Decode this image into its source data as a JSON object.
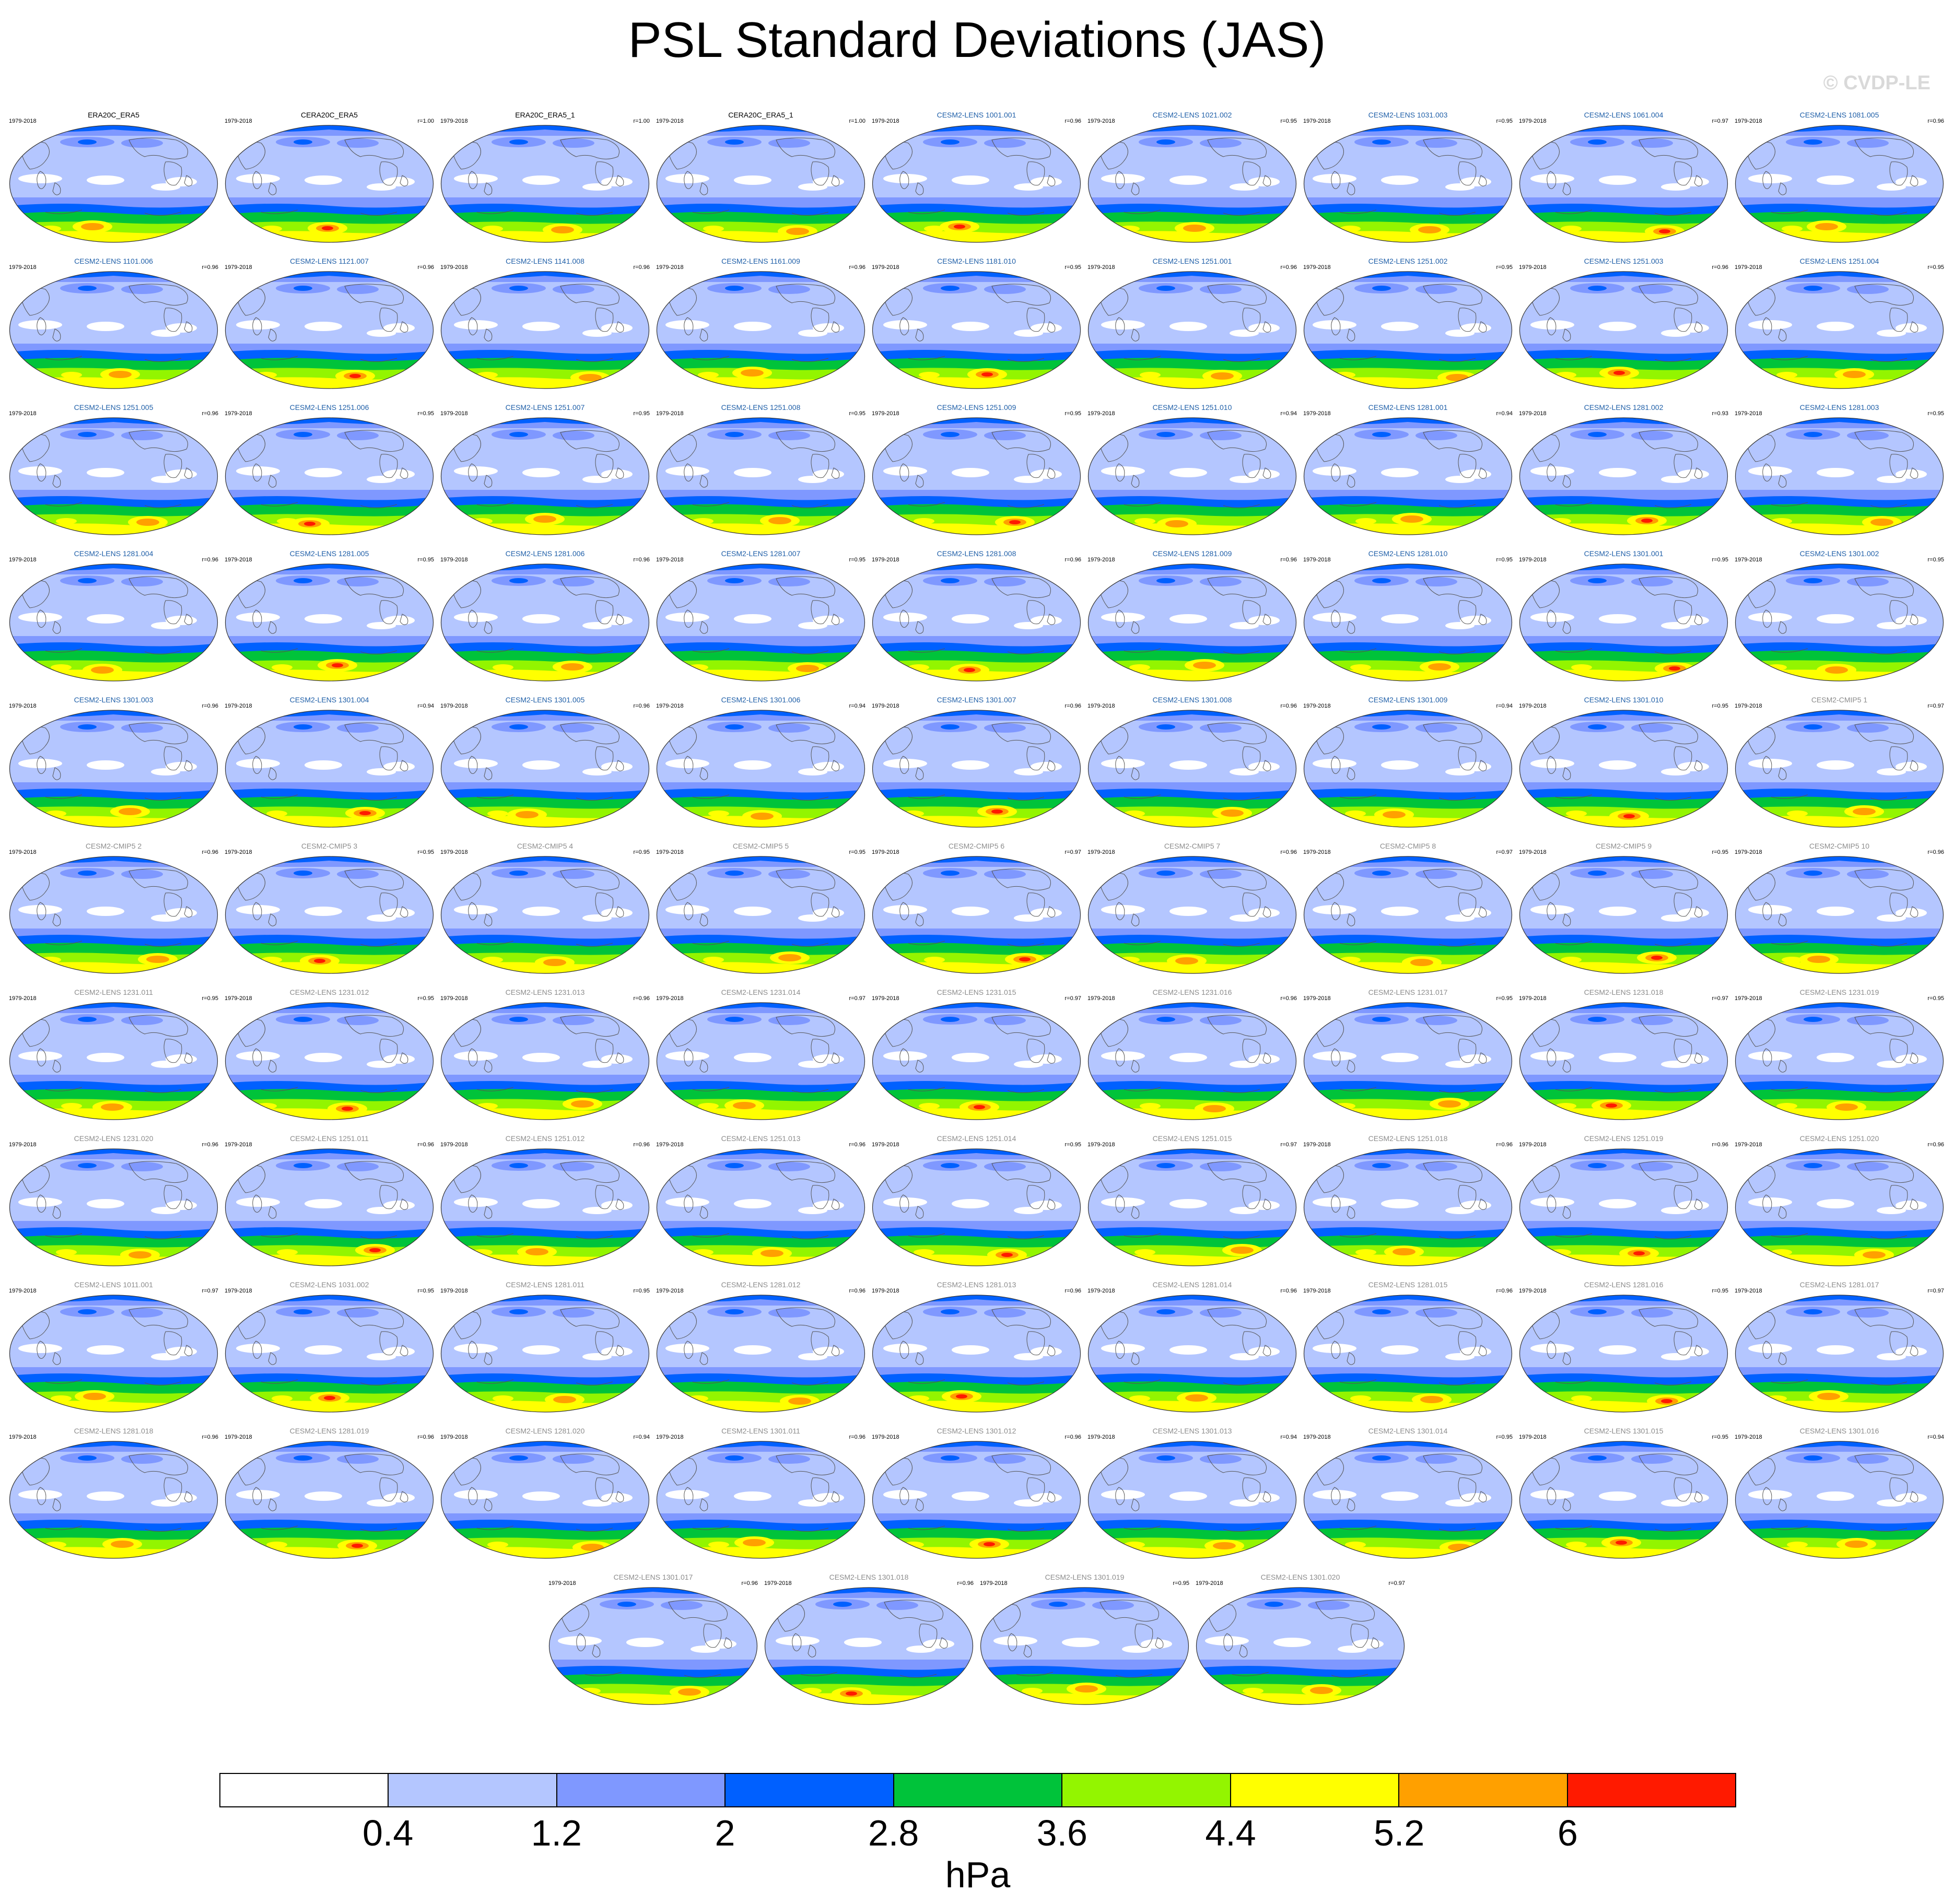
{
  "title": "PSL Standard Deviations (JAS)",
  "watermark": "© CVDP-LE",
  "period": "1979-2018",
  "panels": [
    {
      "title": "ERA20C_ERA5",
      "r": "",
      "cat": "obs"
    },
    {
      "title": "CERA20C_ERA5",
      "r": "r=1.00",
      "cat": "obs"
    },
    {
      "title": "ERA20C_ERA5_1",
      "r": "r=1.00",
      "cat": "obs"
    },
    {
      "title": "CERA20C_ERA5_1",
      "r": "r=1.00",
      "cat": "obs"
    },
    {
      "title": "CESM2-LENS 1001.001",
      "r": "r=0.96",
      "cat": "lens"
    },
    {
      "title": "CESM2-LENS 1021.002",
      "r": "r=0.95",
      "cat": "lens"
    },
    {
      "title": "CESM2-LENS 1031.003",
      "r": "r=0.95",
      "cat": "lens"
    },
    {
      "title": "CESM2-LENS 1061.004",
      "r": "r=0.97",
      "cat": "lens"
    },
    {
      "title": "CESM2-LENS 1081.005",
      "r": "r=0.96",
      "cat": "lens"
    },
    {
      "title": "CESM2-LENS 1101.006",
      "r": "r=0.96",
      "cat": "lens"
    },
    {
      "title": "CESM2-LENS 1121.007",
      "r": "r=0.96",
      "cat": "lens"
    },
    {
      "title": "CESM2-LENS 1141.008",
      "r": "r=0.96",
      "cat": "lens"
    },
    {
      "title": "CESM2-LENS 1161.009",
      "r": "r=0.96",
      "cat": "lens"
    },
    {
      "title": "CESM2-LENS 1181.010",
      "r": "r=0.95",
      "cat": "lens"
    },
    {
      "title": "CESM2-LENS 1251.001",
      "r": "r=0.96",
      "cat": "lens"
    },
    {
      "title": "CESM2-LENS 1251.002",
      "r": "r=0.95",
      "cat": "lens"
    },
    {
      "title": "CESM2-LENS 1251.003",
      "r": "r=0.96",
      "cat": "lens"
    },
    {
      "title": "CESM2-LENS 1251.004",
      "r": "r=0.95",
      "cat": "lens"
    },
    {
      "title": "CESM2-LENS 1251.005",
      "r": "r=0.96",
      "cat": "lens"
    },
    {
      "title": "CESM2-LENS 1251.006",
      "r": "r=0.95",
      "cat": "lens"
    },
    {
      "title": "CESM2-LENS 1251.007",
      "r": "r=0.95",
      "cat": "lens"
    },
    {
      "title": "CESM2-LENS 1251.008",
      "r": "r=0.95",
      "cat": "lens"
    },
    {
      "title": "CESM2-LENS 1251.009",
      "r": "r=0.95",
      "cat": "lens"
    },
    {
      "title": "CESM2-LENS 1251.010",
      "r": "r=0.94",
      "cat": "lens"
    },
    {
      "title": "CESM2-LENS 1281.001",
      "r": "r=0.94",
      "cat": "lens"
    },
    {
      "title": "CESM2-LENS 1281.002",
      "r": "r=0.93",
      "cat": "lens"
    },
    {
      "title": "CESM2-LENS 1281.003",
      "r": "r=0.95",
      "cat": "lens"
    },
    {
      "title": "CESM2-LENS 1281.004",
      "r": "r=0.96",
      "cat": "lens"
    },
    {
      "title": "CESM2-LENS 1281.005",
      "r": "r=0.95",
      "cat": "lens"
    },
    {
      "title": "CESM2-LENS 1281.006",
      "r": "r=0.96",
      "cat": "lens"
    },
    {
      "title": "CESM2-LENS 1281.007",
      "r": "r=0.95",
      "cat": "lens"
    },
    {
      "title": "CESM2-LENS 1281.008",
      "r": "r=0.96",
      "cat": "lens"
    },
    {
      "title": "CESM2-LENS 1281.009",
      "r": "r=0.96",
      "cat": "lens"
    },
    {
      "title": "CESM2-LENS 1281.010",
      "r": "r=0.95",
      "cat": "lens"
    },
    {
      "title": "CESM2-LENS 1301.001",
      "r": "r=0.95",
      "cat": "lens"
    },
    {
      "title": "CESM2-LENS 1301.002",
      "r": "r=0.95",
      "cat": "lens"
    },
    {
      "title": "CESM2-LENS 1301.003",
      "r": "r=0.96",
      "cat": "lens"
    },
    {
      "title": "CESM2-LENS 1301.004",
      "r": "r=0.94",
      "cat": "lens"
    },
    {
      "title": "CESM2-LENS 1301.005",
      "r": "r=0.96",
      "cat": "lens"
    },
    {
      "title": "CESM2-LENS 1301.006",
      "r": "r=0.94",
      "cat": "lens"
    },
    {
      "title": "CESM2-LENS 1301.007",
      "r": "r=0.96",
      "cat": "lens"
    },
    {
      "title": "CESM2-LENS 1301.008",
      "r": "r=0.96",
      "cat": "lens"
    },
    {
      "title": "CESM2-LENS 1301.009",
      "r": "r=0.94",
      "cat": "lens"
    },
    {
      "title": "CESM2-LENS 1301.010",
      "r": "r=0.95",
      "cat": "lens"
    },
    {
      "title": "CESM2-CMIP5 1",
      "r": "r=0.97",
      "cat": "cmip"
    },
    {
      "title": "CESM2-CMIP5 2",
      "r": "r=0.96",
      "cat": "cmip"
    },
    {
      "title": "CESM2-CMIP5 3",
      "r": "r=0.95",
      "cat": "cmip"
    },
    {
      "title": "CESM2-CMIP5 4",
      "r": "r=0.95",
      "cat": "cmip"
    },
    {
      "title": "CESM2-CMIP5 5",
      "r": "r=0.95",
      "cat": "cmip"
    },
    {
      "title": "CESM2-CMIP5 6",
      "r": "r=0.97",
      "cat": "cmip"
    },
    {
      "title": "CESM2-CMIP5 7",
      "r": "r=0.96",
      "cat": "cmip"
    },
    {
      "title": "CESM2-CMIP5 8",
      "r": "r=0.97",
      "cat": "cmip"
    },
    {
      "title": "CESM2-CMIP5 9",
      "r": "r=0.95",
      "cat": "cmip"
    },
    {
      "title": "CESM2-CMIP5 10",
      "r": "r=0.96",
      "cat": "cmip"
    },
    {
      "title": "CESM2-LENS 1231.011",
      "r": "r=0.95",
      "cat": "cmip"
    },
    {
      "title": "CESM2-LENS 1231.012",
      "r": "r=0.95",
      "cat": "cmip"
    },
    {
      "title": "CESM2-LENS 1231.013",
      "r": "r=0.96",
      "cat": "cmip"
    },
    {
      "title": "CESM2-LENS 1231.014",
      "r": "r=0.97",
      "cat": "cmip"
    },
    {
      "title": "CESM2-LENS 1231.015",
      "r": "r=0.97",
      "cat": "cmip"
    },
    {
      "title": "CESM2-LENS 1231.016",
      "r": "r=0.96",
      "cat": "cmip"
    },
    {
      "title": "CESM2-LENS 1231.017",
      "r": "r=0.95",
      "cat": "cmip"
    },
    {
      "title": "CESM2-LENS 1231.018",
      "r": "r=0.97",
      "cat": "cmip"
    },
    {
      "title": "CESM2-LENS 1231.019",
      "r": "r=0.95",
      "cat": "cmip"
    },
    {
      "title": "CESM2-LENS 1231.020",
      "r": "r=0.96",
      "cat": "cmip"
    },
    {
      "title": "CESM2-LENS 1251.011",
      "r": "r=0.96",
      "cat": "cmip"
    },
    {
      "title": "CESM2-LENS 1251.012",
      "r": "r=0.96",
      "cat": "cmip"
    },
    {
      "title": "CESM2-LENS 1251.013",
      "r": "r=0.96",
      "cat": "cmip"
    },
    {
      "title": "CESM2-LENS 1251.014",
      "r": "r=0.95",
      "cat": "cmip"
    },
    {
      "title": "CESM2-LENS 1251.015",
      "r": "r=0.97",
      "cat": "cmip"
    },
    {
      "title": "CESM2-LENS 1251.018",
      "r": "r=0.96",
      "cat": "cmip"
    },
    {
      "title": "CESM2-LENS 1251.019",
      "r": "r=0.96",
      "cat": "cmip"
    },
    {
      "title": "CESM2-LENS 1251.020",
      "r": "r=0.96",
      "cat": "cmip"
    },
    {
      "title": "CESM2-LENS 1011.001",
      "r": "r=0.97",
      "cat": "cmip"
    },
    {
      "title": "CESM2-LENS 1031.002",
      "r": "r=0.95",
      "cat": "cmip"
    },
    {
      "title": "CESM2-LENS 1281.011",
      "r": "r=0.95",
      "cat": "cmip"
    },
    {
      "title": "CESM2-LENS 1281.012",
      "r": "r=0.96",
      "cat": "cmip"
    },
    {
      "title": "CESM2-LENS 1281.013",
      "r": "r=0.96",
      "cat": "cmip"
    },
    {
      "title": "CESM2-LENS 1281.014",
      "r": "r=0.96",
      "cat": "cmip"
    },
    {
      "title": "CESM2-LENS 1281.015",
      "r": "r=0.96",
      "cat": "cmip"
    },
    {
      "title": "CESM2-LENS 1281.016",
      "r": "r=0.95",
      "cat": "cmip"
    },
    {
      "title": "CESM2-LENS 1281.017",
      "r": "r=0.97",
      "cat": "cmip"
    },
    {
      "title": "CESM2-LENS 1281.018",
      "r": "r=0.96",
      "cat": "cmip"
    },
    {
      "title": "CESM2-LENS 1281.019",
      "r": "r=0.96",
      "cat": "cmip"
    },
    {
      "title": "CESM2-LENS 1281.020",
      "r": "r=0.94",
      "cat": "cmip"
    },
    {
      "title": "CESM2-LENS 1301.011",
      "r": "r=0.96",
      "cat": "cmip"
    },
    {
      "title": "CESM2-LENS 1301.012",
      "r": "r=0.96",
      "cat": "cmip"
    },
    {
      "title": "CESM2-LENS 1301.013",
      "r": "r=0.94",
      "cat": "cmip"
    },
    {
      "title": "CESM2-LENS 1301.014",
      "r": "r=0.95",
      "cat": "cmip"
    },
    {
      "title": "CESM2-LENS 1301.015",
      "r": "r=0.95",
      "cat": "cmip"
    },
    {
      "title": "CESM2-LENS 1301.016",
      "r": "r=0.94",
      "cat": "cmip"
    },
    {
      "title": "CESM2-LENS 1301.017",
      "r": "r=0.96",
      "cat": "cmip"
    },
    {
      "title": "CESM2-LENS 1301.018",
      "r": "r=0.96",
      "cat": "cmip"
    },
    {
      "title": "CESM2-LENS 1301.019",
      "r": "r=0.95",
      "cat": "cmip"
    },
    {
      "title": "CESM2-LENS 1301.020",
      "r": "r=0.97",
      "cat": "cmip"
    }
  ],
  "colors": {
    "title_obs": "#000000",
    "title_lens": "#1f5fa8",
    "title_cmip": "#8c8c8c",
    "land_outline": "#555555"
  },
  "colorbar": {
    "fills": [
      "#ffffff",
      "#b4c6ff",
      "#7f98ff",
      "#0060ff",
      "#00c33a",
      "#93f500",
      "#ffff00",
      "#ffa000",
      "#ff1a00"
    ],
    "levels": [
      "0.4",
      "1.2",
      "2",
      "2.8",
      "3.6",
      "4.4",
      "5.2",
      "6"
    ],
    "units": "hPa"
  }
}
